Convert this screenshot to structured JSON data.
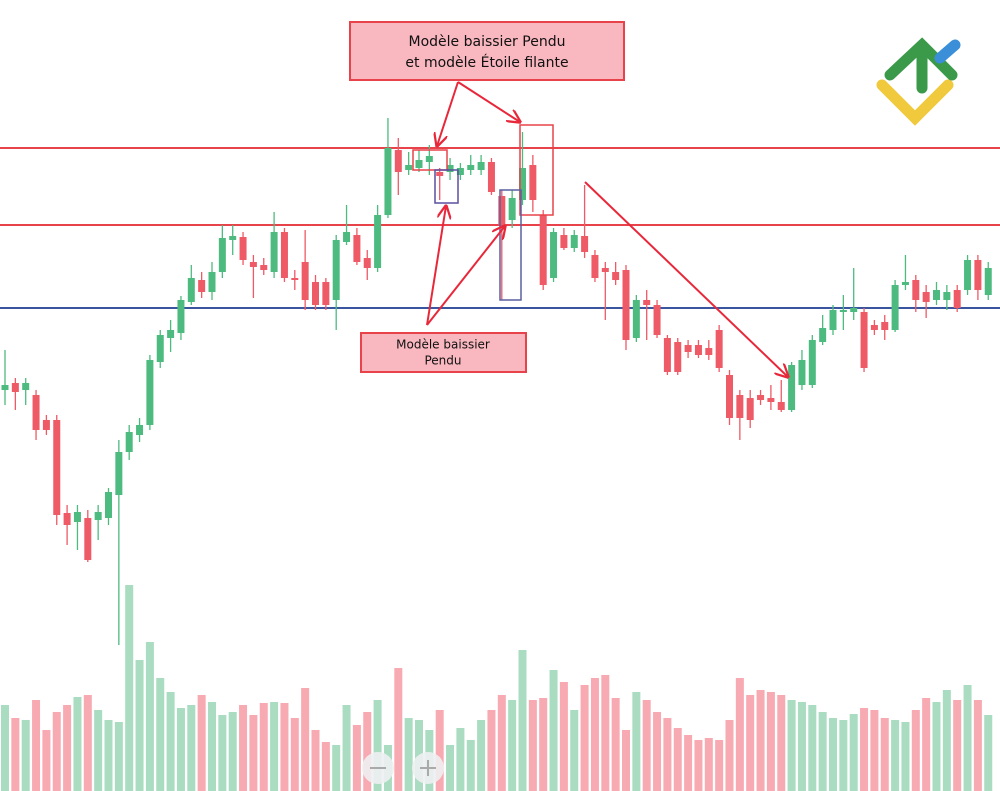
{
  "chart_data": {
    "type": "candlestick",
    "open": [
      410,
      417,
      410,
      405,
      380,
      380,
      287,
      278,
      282,
      280,
      282,
      305,
      348,
      365,
      375,
      438,
      462,
      467,
      498,
      520,
      508,
      528,
      560,
      563,
      538,
      535,
      528,
      568,
      522,
      538,
      518,
      518,
      500,
      558,
      565,
      542,
      532,
      585,
      650,
      630,
      632,
      638,
      628,
      628,
      625,
      630,
      630,
      638,
      604,
      580,
      600,
      635,
      585,
      522,
      565,
      552,
      564,
      545,
      532,
      528,
      530,
      462,
      500,
      495,
      462,
      458,
      455,
      455,
      452,
      470,
      425,
      405,
      402,
      405,
      402,
      398,
      390,
      415,
      415,
      458,
      470,
      488,
      488,
      488,
      475,
      478,
      470,
      515,
      520,
      508,
      500,
      500,
      510,
      510,
      540,
      505
    ],
    "high": [
      450,
      422,
      422,
      410,
      385,
      385,
      295,
      295,
      290,
      295,
      312,
      360,
      375,
      382,
      445,
      470,
      480,
      504,
      535,
      528,
      538,
      575,
      575,
      568,
      545,
      542,
      588,
      572,
      530,
      570,
      525,
      522,
      565,
      595,
      572,
      550,
      595,
      682,
      662,
      648,
      650,
      655,
      632,
      642,
      637,
      645,
      645,
      642,
      610,
      610,
      668,
      645,
      590,
      572,
      572,
      570,
      615,
      550,
      538,
      538,
      535,
      505,
      510,
      500,
      465,
      462,
      460,
      460,
      460,
      475,
      430,
      410,
      410,
      410,
      415,
      420,
      438,
      450,
      465,
      485,
      495,
      505,
      532,
      492,
      480,
      485,
      520,
      545,
      525,
      515,
      518,
      515,
      515,
      545,
      545,
      538
    ],
    "low": [
      395,
      390,
      395,
      360,
      365,
      275,
      255,
      250,
      238,
      260,
      275,
      155,
      340,
      358,
      370,
      432,
      448,
      460,
      495,
      502,
      500,
      522,
      545,
      535,
      502,
      525,
      522,
      518,
      510,
      490,
      490,
      490,
      470,
      555,
      535,
      520,
      528,
      582,
      605,
      625,
      628,
      625,
      600,
      620,
      620,
      625,
      625,
      605,
      500,
      572,
      595,
      588,
      510,
      518,
      550,
      548,
      542,
      518,
      480,
      515,
      450,
      458,
      460,
      462,
      425,
      425,
      442,
      442,
      440,
      428,
      375,
      360,
      372,
      395,
      390,
      388,
      388,
      410,
      412,
      455,
      465,
      470,
      480,
      428,
      465,
      460,
      468,
      510,
      488,
      482,
      495,
      490,
      488,
      505,
      500,
      500
    ],
    "close": [
      415,
      408,
      417,
      370,
      370,
      285,
      275,
      288,
      240,
      288,
      308,
      348,
      368,
      375,
      440,
      465,
      470,
      500,
      522,
      508,
      528,
      562,
      564,
      540,
      533,
      530,
      568,
      522,
      520,
      500,
      495,
      495,
      560,
      568,
      538,
      532,
      585,
      652,
      628,
      635,
      640,
      644,
      624,
      635,
      632,
      635,
      638,
      608,
      575,
      602,
      632,
      600,
      515,
      568,
      552,
      565,
      548,
      522,
      528,
      520,
      460,
      500,
      495,
      465,
      428,
      428,
      448,
      445,
      445,
      432,
      382,
      382,
      380,
      400,
      398,
      390,
      435,
      440,
      460,
      472,
      490,
      490,
      492,
      432,
      470,
      470,
      515,
      518,
      500,
      498,
      510,
      508,
      492,
      540,
      510,
      532
    ],
    "volume": [
      86,
      73,
      71,
      91,
      61,
      79,
      86,
      94,
      96,
      81,
      71,
      69,
      206,
      131,
      149,
      113,
      99,
      83,
      86,
      96,
      89,
      76,
      79,
      86,
      76,
      88,
      89,
      88,
      73,
      103,
      61,
      49,
      46,
      86,
      66,
      79,
      91,
      46,
      123,
      73,
      71,
      61,
      81,
      46,
      63,
      51,
      71,
      81,
      96,
      91,
      141,
      91,
      93,
      121,
      109,
      81,
      106,
      113,
      116,
      93,
      61,
      99,
      91,
      79,
      73,
      63,
      56,
      51,
      53,
      51,
      71,
      113,
      96,
      101,
      99,
      96,
      91,
      89,
      86,
      79,
      73,
      71,
      77,
      83,
      81,
      73,
      71,
      69,
      81,
      93,
      89,
      101,
      91,
      106,
      91,
      76
    ],
    "ylim": [
      9,
      800
    ],
    "y2lim": [
      0,
      791
    ],
    "up_color": "#4dbb7f",
    "down_color": "#ee5a66",
    "volume_up_color": "#a9dcc0",
    "volume_down_color": "#f7aab1",
    "levels": [
      {
        "value": 652,
        "color": "#e8424a"
      },
      {
        "value": 575,
        "color": "#e8424a"
      },
      {
        "value": 492,
        "color": "#3a55a0"
      }
    ],
    "annotations": [
      {
        "text": [
          "Modèle baissier Pendu",
          "et modèle Étoile filante"
        ]
      },
      {
        "text": [
          "Modèle baissier",
          "Pendu"
        ]
      }
    ]
  }
}
